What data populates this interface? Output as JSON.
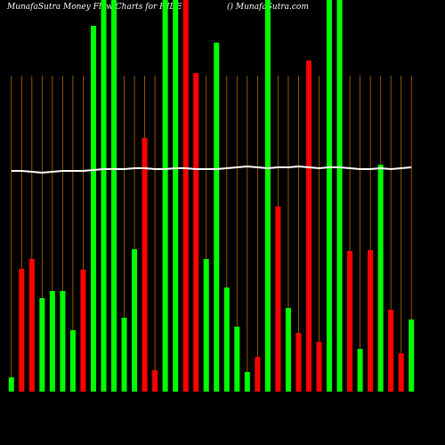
{
  "chart_data": {
    "type": "bar",
    "title": "MunafaSutra  Money Flow  Charts for HIDE",
    "subtitle": "() MunafaSutra.com",
    "values": [
      16,
      138,
      149,
      105,
      113,
      113,
      69,
      137,
      411,
      440,
      440,
      83,
      160,
      285,
      24,
      440,
      440,
      440,
      358,
      149,
      392,
      117,
      73,
      22,
      39,
      440,
      208,
      94,
      66,
      372,
      56,
      440,
      440,
      158,
      48,
      159,
      255,
      92,
      43,
      81
    ],
    "colors": [
      "#00ff00",
      "#ff0000",
      "#ff0000",
      "#00ff00",
      "#00ff00",
      "#00ff00",
      "#00ff00",
      "#ff0000",
      "#00ff00",
      "#00ff00",
      "#00ff00",
      "#00ff00",
      "#00ff00",
      "#ff0000",
      "#ff0000",
      "#00ff00",
      "#00ff00",
      "#ff0000",
      "#ff0000",
      "#00ff00",
      "#00ff00",
      "#00ff00",
      "#00ff00",
      "#00ff00",
      "#ff0000",
      "#00ff00",
      "#ff0000",
      "#00ff00",
      "#ff0000",
      "#ff0000",
      "#ff0000",
      "#00ff00",
      "#00ff00",
      "#ff0000",
      "#00ff00",
      "#ff0000",
      "#00ff00",
      "#ff0000",
      "#ff0000",
      "#00ff00"
    ],
    "line": [
      248,
      248,
      247,
      246,
      247,
      248,
      248,
      248,
      249,
      250,
      250,
      250,
      251,
      251,
      250,
      250,
      251,
      251,
      250,
      250,
      250,
      251,
      252,
      253,
      252,
      251,
      252,
      252,
      253,
      252,
      251,
      252,
      252,
      251,
      250,
      250,
      251,
      250,
      251,
      252
    ],
    "ylim": [
      0,
      440
    ]
  }
}
